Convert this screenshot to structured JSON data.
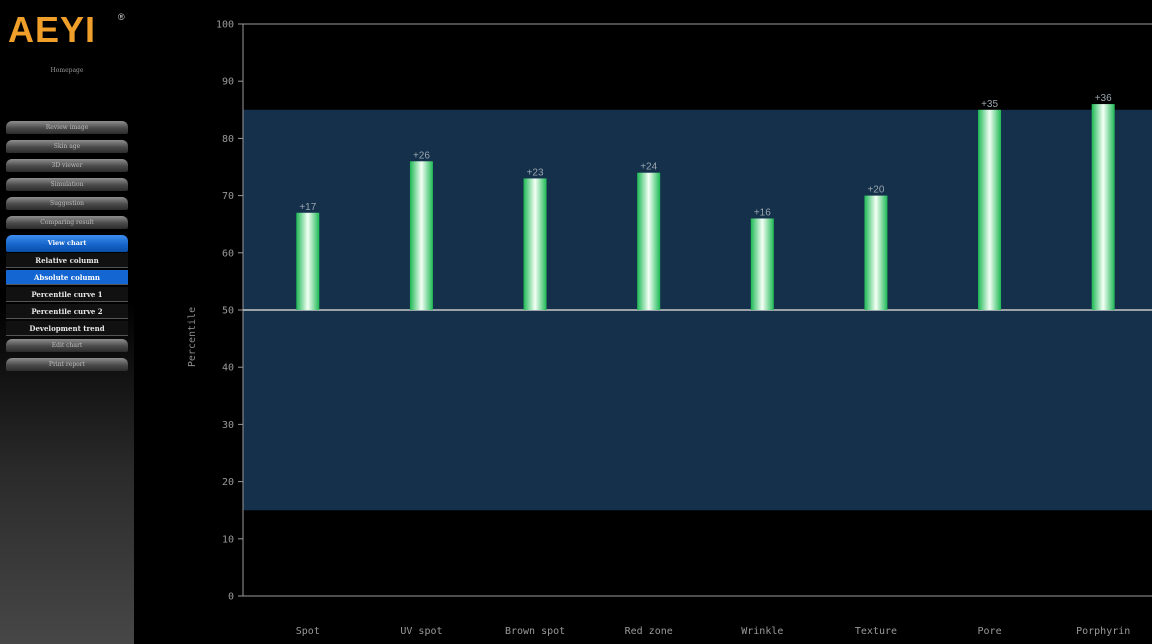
{
  "app": {
    "brand": "AEYI",
    "registered_mark": "®",
    "brand_color": "#f0a02a"
  },
  "sidebar": {
    "homepage_label": "Homepage",
    "menu": [
      {
        "label": "Review image",
        "active": false
      },
      {
        "label": "Skin age",
        "active": false
      },
      {
        "label": "3D viewer",
        "active": false
      },
      {
        "label": "Simulation",
        "active": false
      },
      {
        "label": "Suggestion",
        "active": false
      },
      {
        "label": "Comparing result",
        "active": false
      },
      {
        "label": "View chart",
        "active": true
      }
    ],
    "submenu": [
      {
        "label": "Relative column",
        "active": false
      },
      {
        "label": "Absolute column",
        "active": true
      },
      {
        "label": "Percentile curve 1",
        "active": false
      },
      {
        "label": "Percentile curve 2",
        "active": false
      },
      {
        "label": "Development trend",
        "active": false
      }
    ],
    "menu_bottom": [
      {
        "label": "Edit chart",
        "active": false
      },
      {
        "label": "Print report",
        "active": false
      }
    ]
  },
  "chart_data": {
    "type": "bar",
    "ylabel": "Percentile",
    "xlabel": "",
    "ylim": [
      0,
      100
    ],
    "yticks": [
      0,
      10,
      20,
      30,
      40,
      50,
      60,
      70,
      80,
      90,
      100
    ],
    "baseline": 50,
    "normal_band": [
      15,
      85
    ],
    "categories": [
      "Spot",
      "UV spot",
      "Brown spot",
      "Red zone",
      "Wrinkle",
      "Texture",
      "Pore",
      "Porphyrin"
    ],
    "values": [
      67,
      76,
      73,
      74,
      66,
      70,
      85,
      86
    ],
    "labels": [
      "+17",
      "+26",
      "+23",
      "+24",
      "+16",
      "+20",
      "+35",
      "+36"
    ],
    "colors": {
      "band": "#14304a",
      "bar_edge": "#1db954",
      "bar_center": "#f4fff6",
      "axis": "#9a9a9a",
      "baseline": "#c8c8c8"
    }
  }
}
